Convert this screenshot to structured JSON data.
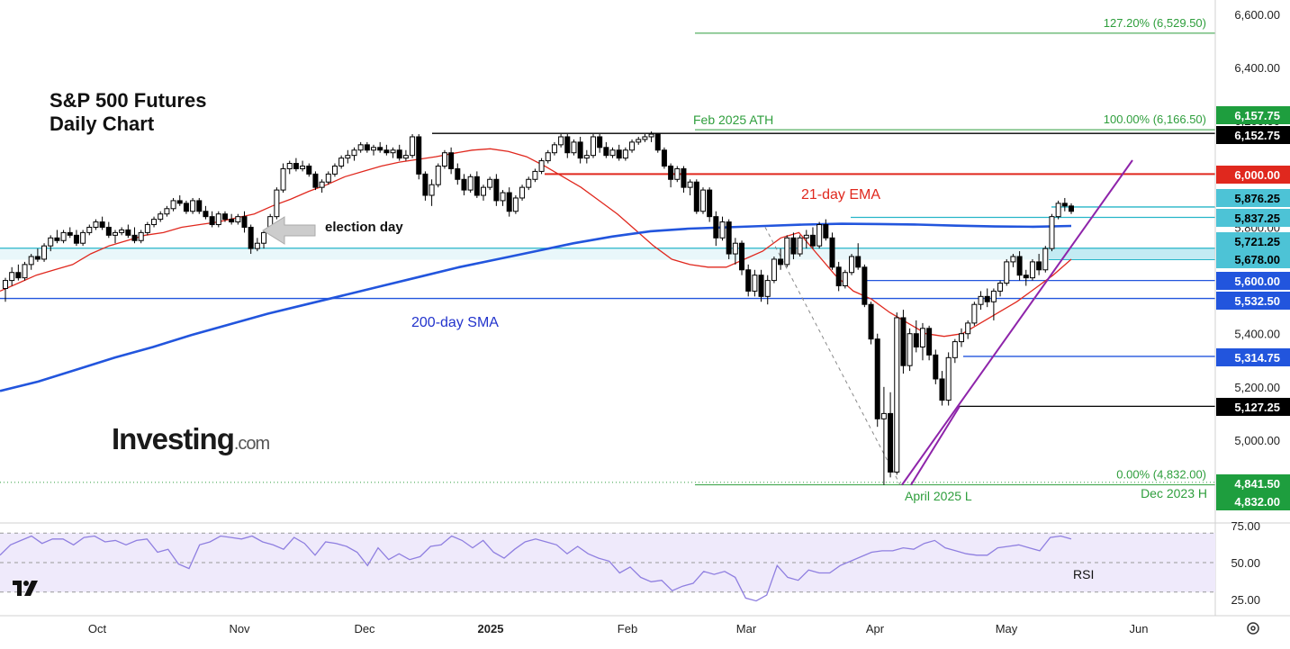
{
  "chart_data": {
    "type": "candlestick",
    "title": "S&P 500 Futures",
    "subtitle": "Daily Chart",
    "brand": {
      "name": "Investing",
      "suffix": ".com"
    },
    "price_axis": {
      "range": [
        4780,
        6650
      ],
      "ticks": [
        "6,600.00",
        "6,400.00",
        "6,200.00",
        "6,000.00",
        "5,800.00",
        "5,600.00",
        "5,400.00",
        "5,200.00",
        "5,000.00"
      ]
    },
    "time_axis": {
      "labels": [
        "Oct",
        "Nov",
        "Dec",
        "2025",
        "Feb",
        "Mar",
        "Apr",
        "May",
        "Jun"
      ]
    },
    "candles": [
      [
        5570,
        5610,
        5520,
        5600
      ],
      [
        5600,
        5650,
        5580,
        5630
      ],
      [
        5630,
        5660,
        5600,
        5610
      ],
      [
        5610,
        5670,
        5600,
        5660
      ],
      [
        5660,
        5700,
        5640,
        5690
      ],
      [
        5690,
        5720,
        5670,
        5680
      ],
      [
        5680,
        5740,
        5670,
        5730
      ],
      [
        5730,
        5770,
        5710,
        5760
      ],
      [
        5760,
        5790,
        5740,
        5750
      ],
      [
        5750,
        5790,
        5740,
        5780
      ],
      [
        5780,
        5800,
        5760,
        5770
      ],
      [
        5770,
        5790,
        5730,
        5740
      ],
      [
        5740,
        5790,
        5730,
        5780
      ],
      [
        5780,
        5810,
        5770,
        5800
      ],
      [
        5800,
        5830,
        5790,
        5820
      ],
      [
        5820,
        5840,
        5790,
        5800
      ],
      [
        5800,
        5820,
        5760,
        5770
      ],
      [
        5770,
        5790,
        5740,
        5780
      ],
      [
        5780,
        5800,
        5770,
        5790
      ],
      [
        5790,
        5810,
        5760,
        5770
      ],
      [
        5770,
        5800,
        5740,
        5750
      ],
      [
        5750,
        5790,
        5740,
        5780
      ],
      [
        5780,
        5820,
        5770,
        5810
      ],
      [
        5810,
        5840,
        5800,
        5830
      ],
      [
        5830,
        5860,
        5820,
        5850
      ],
      [
        5850,
        5880,
        5840,
        5870
      ],
      [
        5870,
        5910,
        5860,
        5900
      ],
      [
        5900,
        5920,
        5880,
        5890
      ],
      [
        5890,
        5900,
        5850,
        5860
      ],
      [
        5860,
        5910,
        5850,
        5900
      ],
      [
        5900,
        5910,
        5850,
        5860
      ],
      [
        5860,
        5880,
        5830,
        5840
      ],
      [
        5840,
        5860,
        5800,
        5810
      ],
      [
        5810,
        5860,
        5800,
        5850
      ],
      [
        5850,
        5860,
        5820,
        5830
      ],
      [
        5830,
        5850,
        5810,
        5820
      ],
      [
        5820,
        5850,
        5810,
        5840
      ],
      [
        5840,
        5860,
        5780,
        5800
      ],
      [
        5800,
        5810,
        5700,
        5720
      ],
      [
        5720,
        5760,
        5710,
        5740
      ],
      [
        5740,
        5790,
        5720,
        5780
      ],
      [
        5780,
        5850,
        5770,
        5840
      ],
      [
        5840,
        5950,
        5830,
        5940
      ],
      [
        5940,
        6040,
        5930,
        6020
      ],
      [
        6020,
        6050,
        6000,
        6040
      ],
      [
        6040,
        6060,
        6010,
        6020
      ],
      [
        6020,
        6050,
        6010,
        6030
      ],
      [
        6030,
        6040,
        5990,
        6000
      ],
      [
        6000,
        6010,
        5940,
        5950
      ],
      [
        5950,
        5980,
        5930,
        5970
      ],
      [
        5970,
        6010,
        5960,
        6000
      ],
      [
        6000,
        6040,
        5990,
        6030
      ],
      [
        6030,
        6070,
        6020,
        6060
      ],
      [
        6060,
        6090,
        6040,
        6070
      ],
      [
        6070,
        6100,
        6050,
        6090
      ],
      [
        6090,
        6120,
        6080,
        6110
      ],
      [
        6110,
        6120,
        6080,
        6090
      ],
      [
        6090,
        6110,
        6070,
        6100
      ],
      [
        6100,
        6120,
        6080,
        6090
      ],
      [
        6090,
        6110,
        6070,
        6080
      ],
      [
        6080,
        6100,
        6060,
        6090
      ],
      [
        6090,
        6110,
        6050,
        6060
      ],
      [
        6060,
        6090,
        6050,
        6070
      ],
      [
        6070,
        6150,
        6060,
        6140
      ],
      [
        6140,
        6150,
        5980,
        6000
      ],
      [
        6000,
        6010,
        5900,
        5920
      ],
      [
        5920,
        5980,
        5880,
        5960
      ],
      [
        5960,
        6040,
        5950,
        6030
      ],
      [
        6030,
        6090,
        6020,
        6080
      ],
      [
        6080,
        6100,
        6000,
        6020
      ],
      [
        6020,
        6040,
        5960,
        5980
      ],
      [
        5980,
        6000,
        5920,
        5940
      ],
      [
        5940,
        6000,
        5930,
        5990
      ],
      [
        5990,
        6010,
        5910,
        5920
      ],
      [
        5920,
        5960,
        5900,
        5950
      ],
      [
        5950,
        5990,
        5940,
        5980
      ],
      [
        5980,
        6000,
        5880,
        5900
      ],
      [
        5900,
        5940,
        5880,
        5930
      ],
      [
        5930,
        5950,
        5840,
        5860
      ],
      [
        5860,
        5920,
        5850,
        5910
      ],
      [
        5910,
        5960,
        5900,
        5950
      ],
      [
        5950,
        5990,
        5940,
        5980
      ],
      [
        5980,
        6020,
        5970,
        6010
      ],
      [
        6010,
        6060,
        6000,
        6050
      ],
      [
        6050,
        6090,
        6040,
        6080
      ],
      [
        6080,
        6120,
        6070,
        6110
      ],
      [
        6110,
        6150,
        6100,
        6140
      ],
      [
        6140,
        6150,
        6060,
        6080
      ],
      [
        6080,
        6130,
        6070,
        6120
      ],
      [
        6120,
        6140,
        6040,
        6060
      ],
      [
        6060,
        6090,
        6040,
        6070
      ],
      [
        6070,
        6150,
        6060,
        6140
      ],
      [
        6140,
        6150,
        6080,
        6100
      ],
      [
        6100,
        6120,
        6060,
        6070
      ],
      [
        6070,
        6100,
        6060,
        6090
      ],
      [
        6090,
        6110,
        6050,
        6060
      ],
      [
        6060,
        6100,
        6050,
        6090
      ],
      [
        6090,
        6130,
        6080,
        6120
      ],
      [
        6120,
        6140,
        6110,
        6130
      ],
      [
        6130,
        6150,
        6120,
        6140
      ],
      [
        6140,
        6160,
        6120,
        6150
      ],
      [
        6150,
        6155,
        6080,
        6090
      ],
      [
        6090,
        6100,
        6020,
        6030
      ],
      [
        6030,
        6040,
        5950,
        5980
      ],
      [
        5980,
        6030,
        5970,
        6020
      ],
      [
        6020,
        6030,
        5930,
        5950
      ],
      [
        5950,
        5980,
        5920,
        5970
      ],
      [
        5970,
        5980,
        5850,
        5860
      ],
      [
        5860,
        5950,
        5850,
        5940
      ],
      [
        5940,
        5950,
        5820,
        5840
      ],
      [
        5840,
        5860,
        5730,
        5760
      ],
      [
        5760,
        5840,
        5750,
        5820
      ],
      [
        5820,
        5830,
        5680,
        5700
      ],
      [
        5700,
        5760,
        5660,
        5740
      ],
      [
        5740,
        5750,
        5620,
        5640
      ],
      [
        5640,
        5660,
        5540,
        5560
      ],
      [
        5560,
        5640,
        5540,
        5620
      ],
      [
        5620,
        5640,
        5520,
        5540
      ],
      [
        5540,
        5620,
        5510,
        5600
      ],
      [
        5600,
        5690,
        5590,
        5680
      ],
      [
        5680,
        5720,
        5640,
        5660
      ],
      [
        5660,
        5770,
        5650,
        5760
      ],
      [
        5760,
        5780,
        5680,
        5700
      ],
      [
        5700,
        5770,
        5690,
        5760
      ],
      [
        5760,
        5790,
        5720,
        5770
      ],
      [
        5770,
        5800,
        5720,
        5730
      ],
      [
        5730,
        5820,
        5720,
        5810
      ],
      [
        5810,
        5830,
        5750,
        5760
      ],
      [
        5760,
        5780,
        5640,
        5650
      ],
      [
        5650,
        5670,
        5560,
        5580
      ],
      [
        5580,
        5640,
        5570,
        5630
      ],
      [
        5630,
        5700,
        5620,
        5690
      ],
      [
        5690,
        5740,
        5640,
        5650
      ],
      [
        5650,
        5660,
        5500,
        5510
      ],
      [
        5510,
        5520,
        5360,
        5380
      ],
      [
        5380,
        5400,
        5050,
        5080
      ],
      [
        5080,
        5200,
        4832,
        5100
      ],
      [
        5100,
        5180,
        4860,
        4880
      ],
      [
        4880,
        5480,
        4870,
        5460
      ],
      [
        5460,
        5490,
        5250,
        5280
      ],
      [
        5280,
        5420,
        5260,
        5400
      ],
      [
        5400,
        5450,
        5330,
        5350
      ],
      [
        5350,
        5440,
        5300,
        5420
      ],
      [
        5420,
        5430,
        5300,
        5320
      ],
      [
        5320,
        5340,
        5210,
        5230
      ],
      [
        5230,
        5260,
        5130,
        5150
      ],
      [
        5150,
        5330,
        5130,
        5310
      ],
      [
        5310,
        5380,
        5290,
        5370
      ],
      [
        5370,
        5420,
        5350,
        5400
      ],
      [
        5400,
        5450,
        5380,
        5440
      ],
      [
        5440,
        5520,
        5430,
        5510
      ],
      [
        5510,
        5560,
        5490,
        5540
      ],
      [
        5540,
        5570,
        5500,
        5520
      ],
      [
        5520,
        5570,
        5450,
        5560
      ],
      [
        5560,
        5600,
        5540,
        5590
      ],
      [
        5590,
        5680,
        5580,
        5670
      ],
      [
        5670,
        5700,
        5650,
        5690
      ],
      [
        5690,
        5710,
        5600,
        5620
      ],
      [
        5620,
        5640,
        5580,
        5610
      ],
      [
        5610,
        5680,
        5600,
        5670
      ],
      [
        5670,
        5700,
        5620,
        5640
      ],
      [
        5640,
        5730,
        5630,
        5720
      ],
      [
        5720,
        5850,
        5710,
        5840
      ],
      [
        5840,
        5900,
        5830,
        5890
      ],
      [
        5890,
        5910,
        5860,
        5880
      ],
      [
        5880,
        5890,
        5850,
        5860
      ]
    ],
    "ema21": [
      5560,
      5590,
      5620,
      5640,
      5660,
      5700,
      5730,
      5750,
      5770,
      5780,
      5800,
      5810,
      5820,
      5835,
      5850,
      5880,
      5905,
      5935,
      5960,
      5990,
      6010,
      6030,
      6045,
      6055,
      6065,
      6078,
      6090,
      6095,
      6085,
      6065,
      6030,
      5990,
      5950,
      5900,
      5850,
      5790,
      5730,
      5680,
      5660,
      5650,
      5650,
      5680,
      5710,
      5760,
      5780,
      5700,
      5620,
      5560,
      5530,
      5480,
      5440,
      5400,
      5390,
      5400,
      5440,
      5480,
      5520,
      5570,
      5620,
      5680
    ],
    "sma200": [
      5185,
      5220,
      5265,
      5310,
      5350,
      5395,
      5435,
      5475,
      5510,
      5545,
      5580,
      5615,
      5650,
      5680,
      5710,
      5740,
      5765,
      5785,
      5795,
      5800,
      5805,
      5810,
      5813,
      5812,
      5810,
      5806,
      5803,
      5802,
      5805
    ],
    "rsi": [
      55,
      62,
      65,
      68,
      63,
      66,
      66,
      62,
      67,
      68,
      64,
      65,
      62,
      65,
      66,
      57,
      59,
      49,
      46,
      62,
      64,
      68,
      67,
      66,
      68,
      64,
      62,
      59,
      67,
      63,
      55,
      64,
      63,
      61,
      57,
      48,
      60,
      52,
      56,
      52,
      54,
      61,
      62,
      68,
      65,
      60,
      65,
      57,
      53,
      59,
      64,
      66,
      64,
      62,
      56,
      61,
      56,
      53,
      51,
      43,
      47,
      40,
      37,
      38,
      31,
      34,
      36,
      44,
      42,
      44,
      40,
      26,
      24,
      28,
      48,
      40,
      38,
      45,
      43,
      43,
      48,
      51,
      54,
      57,
      58,
      58,
      60,
      59,
      63,
      65,
      60,
      58,
      56,
      55,
      55,
      60,
      61,
      62,
      60,
      58,
      67,
      68,
      66
    ],
    "rsi_label": "RSI",
    "rsi_axis": {
      "ticks": [
        "75.00",
        "50.00",
        "25.00"
      ],
      "levels": [
        70,
        50,
        30
      ]
    },
    "levels": [
      {
        "price": 6529.5,
        "label": "127.20% (6,529.50)",
        "color": "#2e9e3c",
        "style": "fib"
      },
      {
        "price": 6166.5,
        "label": "100.00% (6,166.50)",
        "color": "#2e9e3c",
        "style": "fib"
      },
      {
        "price": 4832,
        "label": "0.00% (4,832.00)",
        "color": "#2e9e3c",
        "style": "fib"
      },
      {
        "price": 6152.75,
        "color": "#000000",
        "style": "solid"
      },
      {
        "price": 6000,
        "color": "#e0281e",
        "style": "solid"
      },
      {
        "price": 5876.25,
        "color": "#26b5c8",
        "style": "solid"
      },
      {
        "price": 5837.25,
        "color": "#26b5c8",
        "style": "solid"
      },
      {
        "price": 5600,
        "color": "#2255dd",
        "style": "solid"
      },
      {
        "price": 5532.5,
        "color": "#2255dd",
        "style": "solid"
      },
      {
        "price": 5314.75,
        "color": "#2255dd",
        "style": "solid"
      },
      {
        "price": 5127.25,
        "color": "#000000",
        "style": "solid"
      }
    ],
    "price_tags": [
      {
        "text": "6,157.75",
        "bg": "#1e9e3e",
        "fg": "#ffffff"
      },
      {
        "text": "6,152.75",
        "bg": "#000000",
        "fg": "#ffffff"
      },
      {
        "text": "6,000.00",
        "bg": "#e0281e",
        "fg": "#ffffff"
      },
      {
        "text": "5,876.25",
        "bg": "#4dc3d6",
        "fg": "#000000"
      },
      {
        "text": "5,837.25",
        "bg": "#4dc3d6",
        "fg": "#000000"
      },
      {
        "text": "5,721.25",
        "bg": "#4dc3d6",
        "fg": "#000000"
      },
      {
        "text": "5,678.00",
        "bg": "#4dc3d6",
        "fg": "#000000"
      },
      {
        "text": "5,600.00",
        "bg": "#2255dd",
        "fg": "#ffffff"
      },
      {
        "text": "5,532.50",
        "bg": "#2255dd",
        "fg": "#ffffff"
      },
      {
        "text": "5,314.75",
        "bg": "#2255dd",
        "fg": "#ffffff"
      },
      {
        "text": "5,127.25",
        "bg": "#000000",
        "fg": "#ffffff"
      },
      {
        "text": "4,841.50",
        "bg": "#1e9e3e",
        "fg": "#ffffff"
      },
      {
        "text": "4,832.00",
        "bg": "#1e9e3e",
        "fg": "#ffffff"
      }
    ],
    "annotations": {
      "feb_ath": "Feb 2025 ATH",
      "ema_label": "21-day EMA",
      "sma_label": "200-day SMA",
      "election_label": "election day",
      "april_low": "April 2025 L",
      "dec_high": "Dec 2023 H"
    },
    "colors": {
      "candle": "#000000",
      "ema": "#e0281e",
      "sma": "#2255dd",
      "trendline": "#8e24aa",
      "rsi_line": "#8f7fe0",
      "rsi_band": "#efeafb",
      "zone": "#bfe9f2"
    }
  }
}
